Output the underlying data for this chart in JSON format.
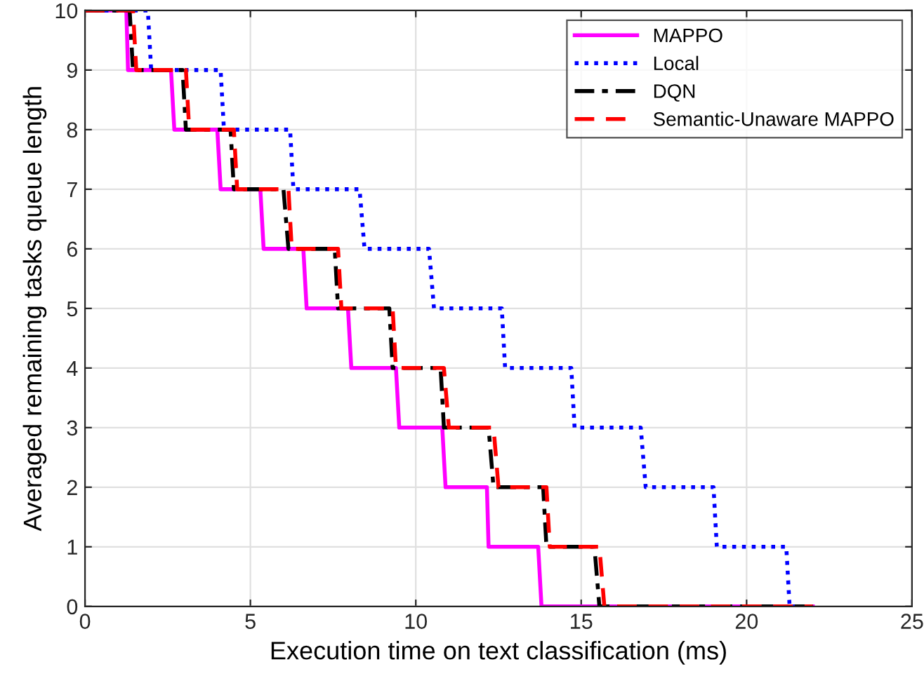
{
  "chart_data": {
    "type": "line",
    "xlabel": "Execution time on text classification (ms)",
    "ylabel": "Averaged remaining tasks queue length",
    "xlim": [
      0,
      25
    ],
    "xticks": [
      0,
      5,
      10,
      15,
      20,
      25
    ],
    "ylim": [
      0,
      10
    ],
    "yticks": [
      0,
      1,
      2,
      3,
      4,
      5,
      6,
      7,
      8,
      9,
      10
    ],
    "grid": true,
    "legend": "top right",
    "marker": "none",
    "series": [
      {
        "name": "MAPPO",
        "color": "#ff00ff",
        "line_style": "solid",
        "x": [
          0,
          1.25,
          1.3,
          2.6,
          2.7,
          4.0,
          4.1,
          5.3,
          5.4,
          6.6,
          6.7,
          7.95,
          8.05,
          9.4,
          9.5,
          10.8,
          10.9,
          12.15,
          12.2,
          13.7,
          13.8,
          22
        ],
        "values": [
          10,
          10,
          9,
          9,
          8,
          8,
          7,
          7,
          6,
          6,
          5,
          5,
          4,
          4,
          3,
          3,
          2,
          2,
          1,
          1,
          0,
          0
        ]
      },
      {
        "name": "Local",
        "color": "#0000ff",
        "line_style": "dotted",
        "x": [
          0,
          1.9,
          2.0,
          4.1,
          4.2,
          6.2,
          6.3,
          8.3,
          8.45,
          10.4,
          10.55,
          12.6,
          12.7,
          14.7,
          14.8,
          16.8,
          16.95,
          19.0,
          19.1,
          21.2,
          21.3,
          22
        ],
        "values": [
          10,
          10,
          9,
          9,
          8,
          8,
          7,
          7,
          6,
          6,
          5,
          5,
          4,
          4,
          3,
          3,
          2,
          2,
          1,
          1,
          0,
          0
        ]
      },
      {
        "name": "DQN",
        "color": "#000000",
        "line_style": "dashdot",
        "x": [
          0,
          1.35,
          1.45,
          2.95,
          3.05,
          4.4,
          4.5,
          6.0,
          6.15,
          7.55,
          7.65,
          9.2,
          9.3,
          10.75,
          10.85,
          12.2,
          12.35,
          13.85,
          13.95,
          15.4,
          15.55,
          22
        ],
        "values": [
          10,
          10,
          9,
          9,
          8,
          8,
          7,
          7,
          6,
          6,
          5,
          5,
          4,
          4,
          3,
          3,
          2,
          2,
          1,
          1,
          0,
          0
        ]
      },
      {
        "name": "Semantic-Unaware MAPPO",
        "color": "#ff0000",
        "line_style": "dashed",
        "x": [
          0,
          1.45,
          1.55,
          3.05,
          3.15,
          4.5,
          4.6,
          6.15,
          6.25,
          7.65,
          7.75,
          9.3,
          9.4,
          10.85,
          11.0,
          12.35,
          12.5,
          13.95,
          14.05,
          15.55,
          15.7,
          22
        ],
        "values": [
          10,
          10,
          9,
          9,
          8,
          8,
          7,
          7,
          6,
          6,
          5,
          5,
          4,
          4,
          3,
          3,
          2,
          2,
          1,
          1,
          0,
          0
        ]
      }
    ]
  }
}
